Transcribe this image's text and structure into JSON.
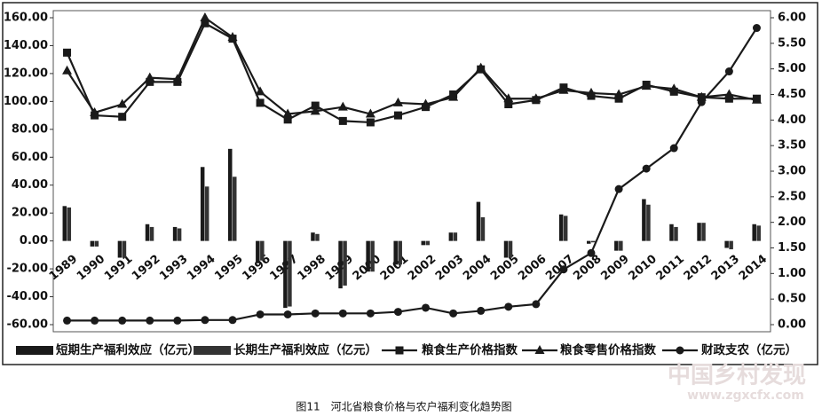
{
  "chart_data": {
    "type": "combo",
    "caption": "图11　河北省粮食价格与农户福利变化趋势图",
    "watermark": [
      "中国乡村发现",
      "www.zgxcfx.com"
    ],
    "categories": [
      "1989",
      "1990",
      "1991",
      "1992",
      "1993",
      "1994",
      "1995",
      "1996",
      "1997",
      "1998",
      "1999",
      "2000",
      "2001",
      "2002",
      "2003",
      "2004",
      "2005",
      "2006",
      "2007",
      "2008",
      "2009",
      "2010",
      "2011",
      "2012",
      "2013",
      "2014"
    ],
    "ylim": [
      -60,
      160
    ],
    "yticks": [
      {
        "value": -60,
        "label": "-60.00"
      },
      {
        "value": -40,
        "label": "-40.00"
      },
      {
        "value": -20,
        "label": "-20.00"
      },
      {
        "value": 0,
        "label": "0.00"
      },
      {
        "value": 20,
        "label": "20.00"
      },
      {
        "value": 40,
        "label": "40.00"
      },
      {
        "value": 60,
        "label": "60.00"
      },
      {
        "value": 80,
        "label": "80.00"
      },
      {
        "value": 100,
        "label": "100.00"
      },
      {
        "value": 120,
        "label": "120.00"
      },
      {
        "value": 140,
        "label": "140.00"
      },
      {
        "value": 160,
        "label": "160.00"
      }
    ],
    "y2lim": [
      0,
      6
    ],
    "y2ticks": [
      {
        "value": 0,
        "label": "0.00"
      },
      {
        "value": 0.5,
        "label": "0.50"
      },
      {
        "value": 1,
        "label": "1.00"
      },
      {
        "value": 1.5,
        "label": "1.50"
      },
      {
        "value": 2,
        "label": "2.00"
      },
      {
        "value": 2.5,
        "label": "2.50"
      },
      {
        "value": 3,
        "label": "3.00"
      },
      {
        "value": 3.5,
        "label": "3.50"
      },
      {
        "value": 4,
        "label": "4.00"
      },
      {
        "value": 4.5,
        "label": "4.50"
      },
      {
        "value": 5,
        "label": "5.00"
      },
      {
        "value": 5.5,
        "label": "5.50"
      },
      {
        "value": 6,
        "label": "6.00"
      }
    ],
    "series": [
      {
        "name": "短期生产福利效应（亿元）",
        "type": "bar",
        "color": "#1a1a1a",
        "values": [
          25,
          -4,
          -12,
          12,
          10,
          53,
          66,
          -16,
          -48,
          6,
          -34,
          -22,
          -17,
          -3,
          6,
          28,
          -12,
          0,
          19,
          -2,
          -7,
          30,
          12,
          13,
          -5,
          12
        ]
      },
      {
        "name": "长期生产福利效应（亿元）",
        "type": "bar",
        "color": "#333333",
        "values": [
          24,
          -4,
          -12,
          10,
          9,
          39,
          46,
          -14,
          -47,
          5,
          -32,
          -22,
          -17,
          -3,
          6,
          17,
          -12,
          0,
          18,
          -1,
          -7,
          26,
          10,
          13,
          -6,
          11
        ]
      },
      {
        "name": "粮食生产价格指数",
        "type": "line",
        "marker": "square",
        "color": "#1a1a1a",
        "values": [
          135,
          90,
          89,
          114,
          114,
          156,
          145,
          99,
          87,
          97,
          86,
          85,
          90,
          96,
          105,
          123,
          98,
          101,
          110,
          104,
          102,
          112,
          107,
          103,
          102,
          102
        ]
      },
      {
        "name": "粮食零售价格指数",
        "type": "line",
        "marker": "triangle",
        "color": "#1a1a1a",
        "values": [
          122,
          92,
          98,
          117,
          116,
          160,
          146,
          107,
          91,
          93,
          96,
          91,
          99,
          98,
          103,
          124,
          102,
          102,
          108,
          106,
          105,
          111,
          109,
          103,
          105,
          101
        ]
      },
      {
        "name": "财政支农（亿元）",
        "type": "line",
        "marker": "circle",
        "color": "#1a1a1a",
        "axis": "y2",
        "values": [
          0.08,
          0.08,
          0.08,
          0.08,
          0.08,
          0.09,
          0.09,
          0.2,
          0.2,
          0.22,
          0.22,
          0.22,
          0.25,
          0.33,
          0.22,
          0.27,
          0.35,
          0.4,
          1.08,
          1.4,
          2.65,
          3.05,
          3.45,
          4.35,
          4.95,
          5.8
        ]
      }
    ]
  }
}
